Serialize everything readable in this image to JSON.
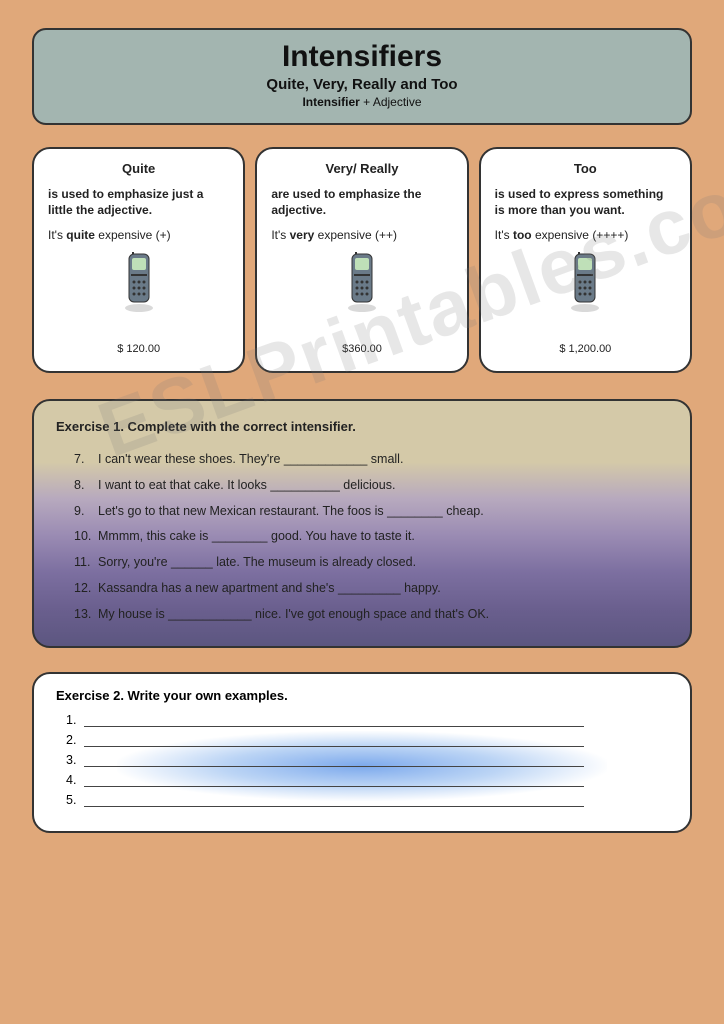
{
  "watermark": "ESLPrintables.com",
  "header": {
    "title": "Intensifiers",
    "subtitle": "Quite, Very, Really and Too",
    "subline_bold": "Intensifier",
    "subline_rest": " + Adjective"
  },
  "cards": [
    {
      "title": "Quite",
      "desc": "is used to emphasize just a little the adjective.",
      "ex_pre": "It's ",
      "ex_bold": "quite",
      "ex_post": " expensive  (+)",
      "price": "$ 120.00"
    },
    {
      "title": "Very/ Really",
      "desc": "are used to emphasize the adjective.",
      "ex_pre": "It's ",
      "ex_bold": "very",
      "ex_post": " expensive (++)",
      "price": "$360.00"
    },
    {
      "title": "Too",
      "desc": "is used to express something is more than you want.",
      "ex_pre": "It's ",
      "ex_bold": "too",
      "ex_post": " expensive (++++)",
      "price": "$ 1,200.00"
    }
  ],
  "ex1": {
    "title": "Exercise 1. Complete with the correct intensifier.",
    "items": [
      {
        "n": "7.",
        "text": "I can't wear these shoes. They're ____________ small."
      },
      {
        "n": "8.",
        "text": "I want to eat that cake. It looks __________ delicious."
      },
      {
        "n": "9.",
        "text": "Let's go to that new Mexican restaurant.  The foos is ________ cheap."
      },
      {
        "n": "10.",
        "text": "Mmmm, this cake is ________ good. You have to taste it."
      },
      {
        "n": "11.",
        "text": "Sorry, you're ______ late. The museum is already closed."
      },
      {
        "n": "12.",
        "text": "Kassandra has a new apartment and she's _________ happy."
      },
      {
        "n": "13.",
        "text": "My house is ____________ nice. I've got enough space and that's OK."
      }
    ]
  },
  "ex2": {
    "title": "Exercise 2. Write your own examples.",
    "count": 5
  },
  "colors": {
    "page_bg": "#e0a87a",
    "title_bg": "#a3b5b0",
    "card_bg": "#ffffff",
    "border": "#333333"
  }
}
